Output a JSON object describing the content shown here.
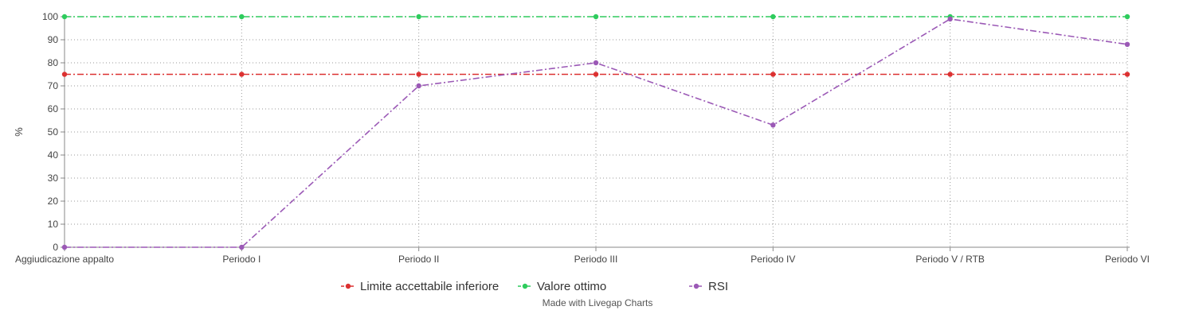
{
  "chart_data": {
    "type": "line",
    "ylabel": "%",
    "ylim": [
      0,
      100
    ],
    "ytick_step": 10,
    "grid": "dotted",
    "legend_position": "bottom-center",
    "categories": [
      "Aggiudicazione appalto",
      "Periodo I",
      "Periodo II",
      "Periodo III",
      "Periodo IV",
      "Periodo V / RTB",
      "Periodo VI"
    ],
    "series": [
      {
        "name": "Limite accettabile inferiore",
        "color": "#dc3131",
        "values": [
          75,
          75,
          75,
          75,
          75,
          75,
          75
        ]
      },
      {
        "name": "Valore ottimo",
        "color": "#2ecc5d",
        "values": [
          100,
          100,
          100,
          100,
          100,
          100,
          100
        ]
      },
      {
        "name": "RSI",
        "color": "#9b59b6",
        "values": [
          0,
          0,
          70,
          80,
          53,
          99,
          88
        ]
      }
    ]
  },
  "credit": "Made with Livegap Charts"
}
